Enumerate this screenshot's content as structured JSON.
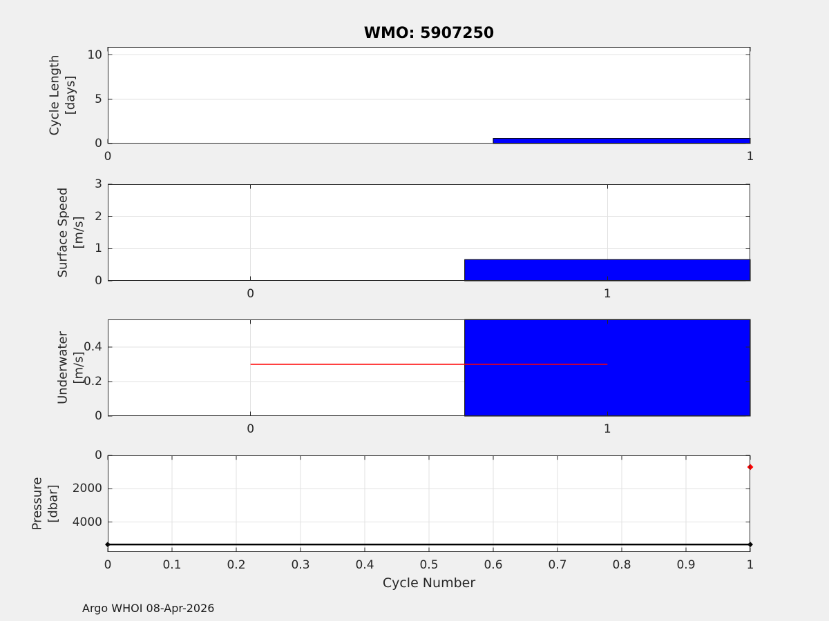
{
  "figure": {
    "title": "WMO: 5907250",
    "xlabel": "Cycle Number",
    "footer": "Argo WHOI 08-Apr-2026",
    "colors": {
      "background": "#f0f0f0",
      "axes_background": "#ffffff",
      "axes_edge": "#262626",
      "grid": "#e2e2e2",
      "bar_fill": "#0000ff",
      "bar_edge": "#000000",
      "red_accent": "#ff0000",
      "black_line": "#000000",
      "tick_label": "#262626"
    }
  },
  "chart_data": [
    {
      "name": "cycle-length",
      "type": "bar",
      "ylabel": "Cycle Length\n[days]",
      "xlim": [
        0,
        1
      ],
      "ylim": [
        0,
        10.9
      ],
      "xticks": [
        {
          "v": 0,
          "label": "0"
        },
        {
          "v": 1,
          "label": "1"
        }
      ],
      "yticks": [
        {
          "v": 0,
          "label": "0"
        },
        {
          "v": 5,
          "label": "5"
        },
        {
          "v": 10,
          "label": "10"
        }
      ],
      "grid": true,
      "bars": [
        {
          "x0": 0.6,
          "x1": 1.4,
          "value": 0.58
        }
      ]
    },
    {
      "name": "surface-speed",
      "type": "bar",
      "ylabel": "Surface Speed\n[m/s]",
      "xlim": [
        -0.4,
        1.4
      ],
      "ylim": [
        0,
        3
      ],
      "xticks": [
        {
          "v": 0,
          "label": "0"
        },
        {
          "v": 1,
          "label": "1"
        }
      ],
      "yticks": [
        {
          "v": 0,
          "label": "0"
        },
        {
          "v": 1,
          "label": "1"
        },
        {
          "v": 2,
          "label": "2"
        },
        {
          "v": 3,
          "label": "3"
        }
      ],
      "grid": true,
      "bars": [
        {
          "x0": 0.6,
          "x1": 1.4,
          "value": 0.66
        }
      ]
    },
    {
      "name": "underwater-speed",
      "type": "bar",
      "ylabel": "Underwater\n[m/s]",
      "xlim": [
        -0.4,
        1.4
      ],
      "ylim": [
        0,
        0.56
      ],
      "xticks": [
        {
          "v": 0,
          "label": "0"
        },
        {
          "v": 1,
          "label": "1"
        }
      ],
      "yticks": [
        {
          "v": 0,
          "label": "0"
        },
        {
          "v": 0.2,
          "label": "0.2"
        },
        {
          "v": 0.4,
          "label": "0.4"
        }
      ],
      "grid": true,
      "bars": [
        {
          "x0": 0.6,
          "x1": 1.4,
          "value": 0.58
        }
      ],
      "overlay_line": {
        "y": 0.3,
        "x0": 0,
        "x1": 1,
        "color": "#ff0000"
      }
    },
    {
      "name": "pressure",
      "type": "line",
      "ylabel": "Pressure\n[dbar]",
      "y_reversed": true,
      "xlim": [
        0,
        1
      ],
      "ylim": [
        0,
        5800
      ],
      "xticks": [
        {
          "v": 0,
          "label": "0"
        },
        {
          "v": 0.1,
          "label": "0.1"
        },
        {
          "v": 0.2,
          "label": "0.2"
        },
        {
          "v": 0.3,
          "label": "0.3"
        },
        {
          "v": 0.4,
          "label": "0.4"
        },
        {
          "v": 0.5,
          "label": "0.5"
        },
        {
          "v": 0.6,
          "label": "0.6"
        },
        {
          "v": 0.7,
          "label": "0.7"
        },
        {
          "v": 0.8,
          "label": "0.8"
        },
        {
          "v": 0.9,
          "label": "0.9"
        },
        {
          "v": 1,
          "label": "1"
        }
      ],
      "yticks": [
        {
          "v": 0,
          "label": "0"
        },
        {
          "v": 2000,
          "label": "2000"
        },
        {
          "v": 4000,
          "label": "4000"
        }
      ],
      "grid": true,
      "series": [
        {
          "name": "profile-pressure-black",
          "x": [
            0,
            1
          ],
          "y": [
            5350,
            5350
          ],
          "color": "#000000",
          "line_width": 2.5,
          "marker": "diamond",
          "marker_size": 4
        }
      ],
      "points": [
        {
          "name": "red-marker",
          "x": 1,
          "y": 700,
          "color": "#ff0000",
          "marker": "diamond",
          "size": 4.5
        }
      ]
    }
  ]
}
